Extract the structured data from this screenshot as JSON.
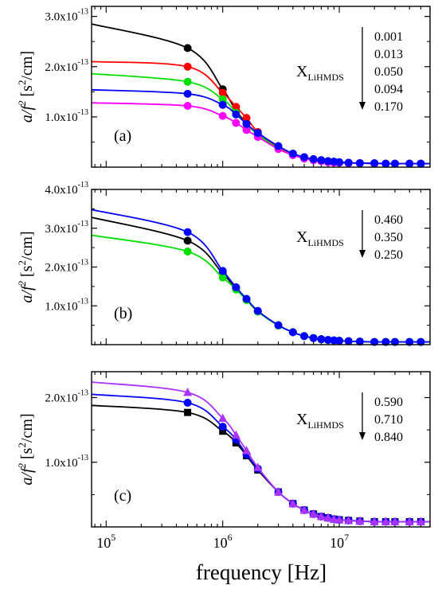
{
  "figure": {
    "xlabel": "frequency [Hz]",
    "ylabel_a": "a/f",
    "ylabel_exp": "2",
    "ylabel_rest": " [s",
    "ylabel_unit_exp": "2",
    "ylabel_tail": "/cm]",
    "x_ticks": [
      {
        "base": "10",
        "exp": "5",
        "value": 100000
      },
      {
        "base": "10",
        "exp": "6",
        "value": 1000000
      },
      {
        "base": "10",
        "exp": "7",
        "value": 10000000
      }
    ],
    "xlim": [
      75000,
      60000000
    ],
    "legend_label_main": "X",
    "legend_label_sub": "LiHMDS"
  },
  "chart_data": [
    {
      "type": "line",
      "panel_label": "(a)",
      "xscale": "log",
      "ylim": [
        0,
        3.2
      ],
      "y_ticks": [
        {
          "value": 1.0,
          "mant": "1.0x10",
          "exp": "-13"
        },
        {
          "value": 2.0,
          "mant": "2.0x10",
          "exp": "-13"
        },
        {
          "value": 3.0,
          "mant": "3.0x10",
          "exp": "-13"
        }
      ],
      "legend_values": [
        "0.001",
        "0.013",
        "0.050",
        "0.094",
        "0.170"
      ],
      "marker": "circle",
      "x": [
        500000,
        1000000,
        1300000,
        1600000,
        2000000,
        3000000,
        4000000,
        5000000,
        6000000,
        7000000,
        8000000,
        9000000,
        10000000,
        12000000,
        15000000,
        20000000,
        25000000,
        30000000,
        40000000,
        50000000
      ],
      "series": [
        {
          "color": "#000000",
          "plateau": 2.85,
          "values": [
            2.37,
            1.55,
            1.12,
            0.88,
            0.65,
            0.38,
            0.25,
            0.18,
            0.14,
            0.12,
            0.11,
            0.1,
            0.09,
            0.08,
            0.08,
            0.07,
            0.07,
            0.07,
            0.07,
            0.07
          ]
        },
        {
          "color": "#ff0000",
          "plateau": 2.1,
          "values": [
            2.0,
            1.48,
            1.2,
            0.98,
            0.7,
            0.38,
            0.25,
            0.18,
            0.14,
            0.12,
            0.11,
            0.1,
            0.09,
            0.08,
            0.08,
            0.07,
            0.07,
            0.07,
            0.07,
            0.07
          ]
        },
        {
          "color": "#00e000",
          "plateau": 1.86,
          "values": [
            1.7,
            1.35,
            1.08,
            0.85,
            0.65,
            0.37,
            0.24,
            0.17,
            0.14,
            0.12,
            0.1,
            0.09,
            0.09,
            0.08,
            0.08,
            0.07,
            0.07,
            0.07,
            0.07,
            0.07
          ]
        },
        {
          "color": "#ff00ff",
          "plateau": 1.28,
          "values": [
            1.22,
            1.02,
            0.88,
            0.74,
            0.6,
            0.36,
            0.24,
            0.17,
            0.14,
            0.12,
            0.1,
            0.09,
            0.09,
            0.08,
            0.08,
            0.07,
            0.07,
            0.07,
            0.07,
            0.07
          ]
        },
        {
          "color": "#0000ff",
          "plateau": 1.54,
          "values": [
            1.46,
            1.24,
            1.05,
            0.86,
            0.68,
            0.42,
            0.27,
            0.2,
            0.16,
            0.14,
            0.12,
            0.11,
            0.1,
            0.09,
            0.08,
            0.08,
            0.07,
            0.07,
            0.07,
            0.07
          ]
        }
      ]
    },
    {
      "type": "line",
      "panel_label": "(b)",
      "xscale": "log",
      "ylim": [
        0,
        4.0
      ],
      "y_ticks": [
        {
          "value": 1.0,
          "mant": "1.0x10",
          "exp": "-13"
        },
        {
          "value": 2.0,
          "mant": "2.0x10",
          "exp": "-13"
        },
        {
          "value": 3.0,
          "mant": "3.0x10",
          "exp": "-13"
        },
        {
          "value": 4.0,
          "mant": "4.0x10",
          "exp": "-13"
        }
      ],
      "legend_values": [
        "0.460",
        "0.350",
        "0.250"
      ],
      "marker": "circle",
      "x": [
        500000,
        1000000,
        1300000,
        1600000,
        2000000,
        3000000,
        4000000,
        5000000,
        6000000,
        7000000,
        8000000,
        9000000,
        10000000,
        12000000,
        15000000,
        20000000,
        25000000,
        30000000,
        40000000,
        50000000
      ],
      "series": [
        {
          "color": "#000000",
          "plateau": 3.28,
          "values": [
            2.68,
            1.83,
            1.45,
            1.17,
            0.86,
            0.5,
            0.32,
            0.22,
            0.17,
            0.14,
            0.12,
            0.11,
            0.1,
            0.09,
            0.08,
            0.07,
            0.07,
            0.07,
            0.07,
            0.07
          ]
        },
        {
          "color": "#00e000",
          "plateau": 2.82,
          "values": [
            2.4,
            1.73,
            1.42,
            1.15,
            0.85,
            0.49,
            0.32,
            0.22,
            0.17,
            0.14,
            0.12,
            0.11,
            0.1,
            0.09,
            0.08,
            0.07,
            0.07,
            0.07,
            0.07,
            0.07
          ]
        },
        {
          "color": "#0000ff",
          "plateau": 3.48,
          "values": [
            2.9,
            1.9,
            1.48,
            1.18,
            0.87,
            0.5,
            0.32,
            0.22,
            0.17,
            0.14,
            0.12,
            0.11,
            0.1,
            0.09,
            0.08,
            0.07,
            0.07,
            0.07,
            0.07,
            0.07
          ]
        }
      ]
    },
    {
      "type": "line",
      "panel_label": "(c)",
      "xscale": "log",
      "ylim": [
        0,
        2.4
      ],
      "y_ticks": [
        {
          "value": 1.0,
          "mant": "1.0x10",
          "exp": "-13"
        },
        {
          "value": 2.0,
          "mant": "2.0x10",
          "exp": "-13"
        }
      ],
      "legend_values": [
        "0.590",
        "0.710",
        "0.840"
      ],
      "x": [
        500000,
        1000000,
        1300000,
        1600000,
        2000000,
        3000000,
        4000000,
        5000000,
        6000000,
        7000000,
        8000000,
        9000000,
        10000000,
        12000000,
        15000000,
        20000000,
        25000000,
        30000000,
        40000000,
        50000000
      ],
      "series": [
        {
          "color": "#000000",
          "marker": "square",
          "plateau": 1.88,
          "values": [
            1.77,
            1.48,
            1.3,
            1.1,
            0.88,
            0.54,
            0.36,
            0.26,
            0.2,
            0.16,
            0.14,
            0.12,
            0.11,
            0.1,
            0.09,
            0.08,
            0.08,
            0.08,
            0.08,
            0.08
          ]
        },
        {
          "color": "#0000ff",
          "marker": "circle",
          "plateau": 2.05,
          "values": [
            1.92,
            1.55,
            1.35,
            1.12,
            0.9,
            0.54,
            0.36,
            0.26,
            0.2,
            0.16,
            0.14,
            0.12,
            0.11,
            0.1,
            0.09,
            0.08,
            0.08,
            0.08,
            0.08,
            0.08
          ]
        },
        {
          "color": "#aa33ff",
          "marker": "triangle",
          "plateau": 2.24,
          "values": [
            2.08,
            1.68,
            1.42,
            1.18,
            0.92,
            0.54,
            0.36,
            0.26,
            0.2,
            0.16,
            0.14,
            0.12,
            0.11,
            0.1,
            0.09,
            0.08,
            0.08,
            0.08,
            0.08,
            0.08
          ]
        }
      ]
    }
  ]
}
